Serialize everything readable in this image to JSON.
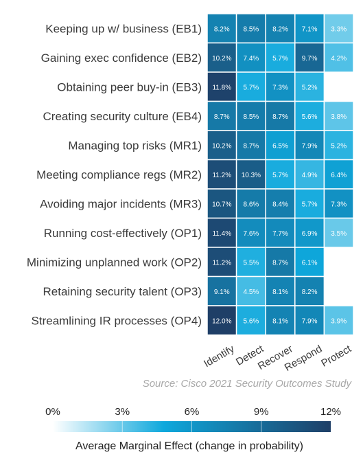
{
  "chart_data": {
    "type": "heatmap",
    "rows": [
      "Keeping up w/ business (EB1)",
      "Gaining exec confidence (EB2)",
      "Obtaining peer buy-in (EB3)",
      "Creating security culture (EB4)",
      "Managing top risks (MR1)",
      "Meeting compliance regs (MR2)",
      "Avoiding major incidents (MR3)",
      "Running cost-effectively (OP1)",
      "Minimizing unplanned work (OP2)",
      "Retaining security talent (OP3)",
      "Streamlining IR processes (OP4)"
    ],
    "columns": [
      "Identify",
      "Detect",
      "Recover",
      "Respond",
      "Protect"
    ],
    "values": [
      [
        8.2,
        8.5,
        8.2,
        7.1,
        3.3
      ],
      [
        10.2,
        7.4,
        5.7,
        9.7,
        4.2
      ],
      [
        11.8,
        5.7,
        7.3,
        5.2,
        null
      ],
      [
        8.7,
        8.5,
        8.7,
        5.6,
        3.8
      ],
      [
        10.2,
        8.7,
        6.5,
        7.9,
        5.2
      ],
      [
        11.2,
        10.3,
        5.7,
        4.9,
        6.4
      ],
      [
        10.7,
        8.6,
        8.4,
        5.7,
        7.3
      ],
      [
        11.4,
        7.6,
        7.7,
        6.9,
        3.5
      ],
      [
        11.2,
        5.5,
        8.7,
        6.1,
        null
      ],
      [
        9.1,
        4.5,
        8.1,
        8.2,
        null
      ],
      [
        12.0,
        5.6,
        8.1,
        7.9,
        3.9
      ]
    ],
    "value_suffix": "%",
    "source": "Source: Cisco 2021 Security Outcomes Study",
    "colorbar": {
      "ticks": [
        0,
        3,
        6,
        9,
        12
      ],
      "tick_labels": [
        "0%",
        "3%",
        "6%",
        "9%",
        "12%"
      ],
      "min": 0,
      "max": 12,
      "title": "Average Marginal Effect (change in probability)"
    },
    "colors": {
      "low": "#e9f7fc",
      "mid": "#0ea8dc",
      "high": "#1f3f67",
      "grid_line": "#ffffff"
    }
  }
}
